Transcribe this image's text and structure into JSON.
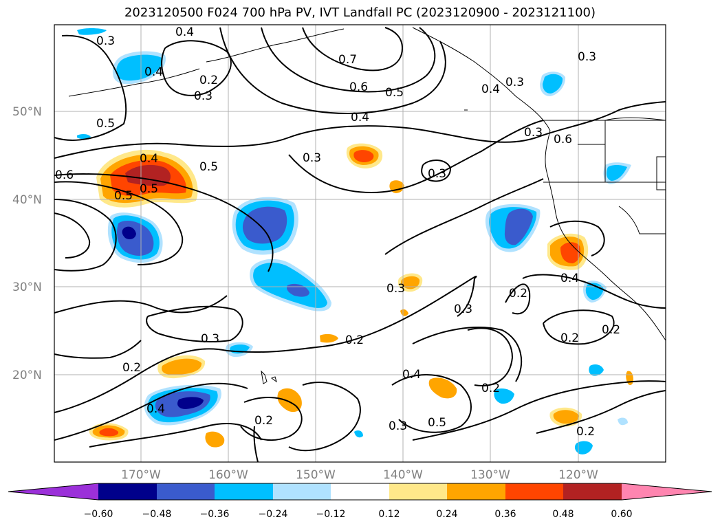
{
  "title": "2023120500 F024 700 hPa PV, IVT Landfall PC (2023120900 - 2023121100)",
  "lat_labels": [
    "50°N",
    "40°N",
    "30°N",
    "20°N"
  ],
  "lon_labels": [
    "170°W",
    "160°W",
    "150°W",
    "140°W",
    "130°W",
    "120°W"
  ],
  "colorbar": {
    "ticks": [
      "−0.60",
      "−0.48",
      "−0.36",
      "−0.24",
      "−0.12",
      "0.12",
      "0.24",
      "0.36",
      "0.48",
      "0.60"
    ],
    "colors": [
      "#9b30d9",
      "#00008b",
      "#3a5bcd",
      "#00bfff",
      "#b0e2ff",
      "#ffffff",
      "#ffe88a",
      "#ffa500",
      "#ff4500",
      "#b22222",
      "#ff85b0"
    ]
  },
  "contour_labels": [
    "0.3",
    "0.4",
    "0.2",
    "0.4",
    "0.3",
    "0.5",
    "0.7",
    "0.6",
    "0.5",
    "0.4",
    "0.3",
    "0.4",
    "0.3",
    "0.3",
    "0.6",
    "0.5",
    "0.4",
    "0.5",
    "0.5",
    "0.3",
    "0.3",
    "0.2",
    "0.3",
    "0.2",
    "0.3",
    "0.4",
    "0.2",
    "0.5",
    "0.3",
    "0.2",
    "0.2",
    "0.4",
    "0.2",
    "0.4",
    "0.2",
    "0.2",
    "0.6",
    "0.3"
  ],
  "colors": {
    "contour": "#000000",
    "grid": "#b0b0b0",
    "axis_label": "#808080"
  }
}
